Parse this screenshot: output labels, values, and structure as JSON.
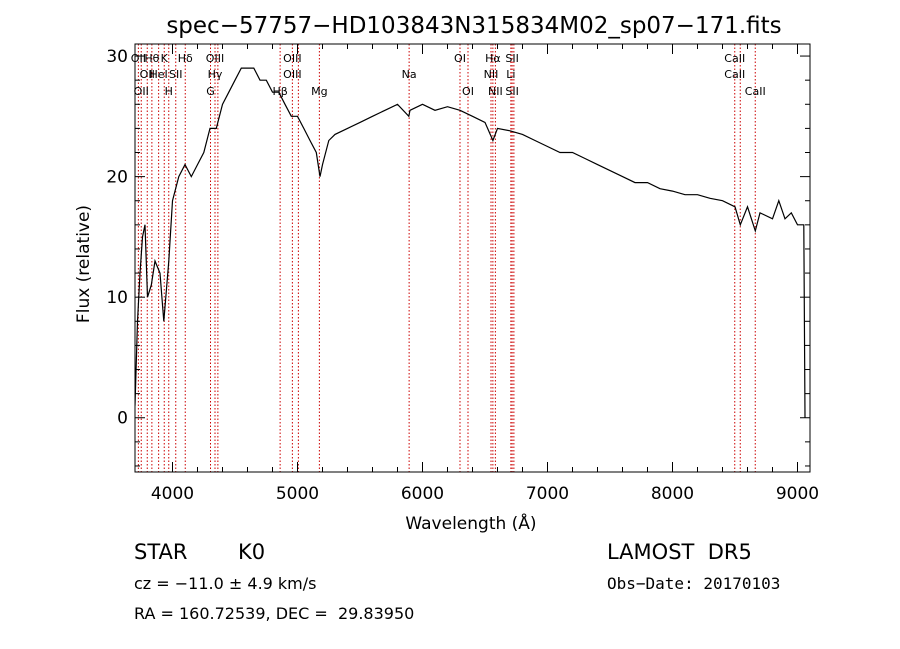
{
  "chart_data": {
    "type": "line",
    "title": "spec−57757−HD103843N315834M02_sp07−171.fits",
    "xlabel": "Wavelength (Å)",
    "ylabel": "Flux (relative)",
    "xlim": [
      3700,
      9100
    ],
    "ylim": [
      -4.5,
      31
    ],
    "grid": false,
    "xticks": [
      4000,
      5000,
      6000,
      7000,
      8000,
      9000
    ],
    "yticks": [
      0,
      10,
      20,
      30
    ],
    "series": [
      {
        "color": "#000000",
        "points": [
          [
            3700,
            1
          ],
          [
            3720,
            8
          ],
          [
            3740,
            12
          ],
          [
            3760,
            15
          ],
          [
            3780,
            16
          ],
          [
            3800,
            10
          ],
          [
            3830,
            11
          ],
          [
            3860,
            13
          ],
          [
            3900,
            12
          ],
          [
            3930,
            8
          ],
          [
            3970,
            13
          ],
          [
            4000,
            18
          ],
          [
            4050,
            20
          ],
          [
            4100,
            21
          ],
          [
            4150,
            20
          ],
          [
            4200,
            21
          ],
          [
            4250,
            22
          ],
          [
            4300,
            24
          ],
          [
            4350,
            24
          ],
          [
            4400,
            26
          ],
          [
            4450,
            27
          ],
          [
            4500,
            28
          ],
          [
            4550,
            29
          ],
          [
            4600,
            29
          ],
          [
            4650,
            29
          ],
          [
            4700,
            28
          ],
          [
            4750,
            28
          ],
          [
            4800,
            27
          ],
          [
            4850,
            27
          ],
          [
            4900,
            26
          ],
          [
            4950,
            25
          ],
          [
            5000,
            25
          ],
          [
            5050,
            24
          ],
          [
            5100,
            23
          ],
          [
            5150,
            22
          ],
          [
            5180,
            20
          ],
          [
            5200,
            21
          ],
          [
            5250,
            23
          ],
          [
            5300,
            23.5
          ],
          [
            5400,
            24
          ],
          [
            5500,
            24.5
          ],
          [
            5600,
            25
          ],
          [
            5700,
            25.5
          ],
          [
            5800,
            26
          ],
          [
            5890,
            25
          ],
          [
            5900,
            25.5
          ],
          [
            6000,
            26
          ],
          [
            6100,
            25.5
          ],
          [
            6200,
            25.8
          ],
          [
            6300,
            25.5
          ],
          [
            6400,
            25
          ],
          [
            6500,
            24.5
          ],
          [
            6563,
            23
          ],
          [
            6600,
            24
          ],
          [
            6700,
            23.8
          ],
          [
            6800,
            23.5
          ],
          [
            6900,
            23
          ],
          [
            7000,
            22.5
          ],
          [
            7100,
            22
          ],
          [
            7200,
            22
          ],
          [
            7300,
            21.5
          ],
          [
            7400,
            21
          ],
          [
            7500,
            20.5
          ],
          [
            7600,
            20
          ],
          [
            7700,
            19.5
          ],
          [
            7800,
            19.5
          ],
          [
            7900,
            19
          ],
          [
            8000,
            18.8
          ],
          [
            8100,
            18.5
          ],
          [
            8200,
            18.5
          ],
          [
            8300,
            18.2
          ],
          [
            8400,
            18
          ],
          [
            8500,
            17.5
          ],
          [
            8542,
            16
          ],
          [
            8600,
            17.5
          ],
          [
            8662,
            15.5
          ],
          [
            8700,
            17
          ],
          [
            8800,
            16.5
          ],
          [
            8850,
            18
          ],
          [
            8900,
            16.5
          ],
          [
            8950,
            17
          ],
          [
            9000,
            16
          ],
          [
            9050,
            16
          ],
          [
            9060,
            0
          ]
        ]
      }
    ],
    "lines": [
      {
        "x": 3727,
        "labels": [
          "OII"
        ]
      },
      {
        "x": 3750,
        "labels": [
          "",
          "",
          "OII"
        ]
      },
      {
        "x": 3798,
        "labels": [
          "",
          "OII"
        ]
      },
      {
        "x": 3835,
        "labels": [
          "Hθ"
        ]
      },
      {
        "x": 3889,
        "labels": [
          "",
          "HeI"
        ]
      },
      {
        "x": 3934,
        "labels": [
          "K"
        ]
      },
      {
        "x": 3970,
        "labels": [
          "",
          "",
          "H"
        ]
      },
      {
        "x": 4026,
        "labels": [
          "",
          "SII"
        ]
      },
      {
        "x": 4102,
        "labels": [
          "Hδ"
        ]
      },
      {
        "x": 4304,
        "labels": [
          "",
          "",
          "G"
        ]
      },
      {
        "x": 4340,
        "labels": [
          "OIII",
          "Hγ"
        ]
      },
      {
        "x": 4363,
        "labels": []
      },
      {
        "x": 4861,
        "labels": [
          "",
          "",
          "Hβ"
        ]
      },
      {
        "x": 4959,
        "labels": [
          "OIII",
          "OIII"
        ]
      },
      {
        "x": 5007,
        "labels": []
      },
      {
        "x": 5175,
        "labels": [
          "",
          "",
          "Mg"
        ]
      },
      {
        "x": 5893,
        "labels": [
          "",
          "Na"
        ]
      },
      {
        "x": 6300,
        "labels": [
          "OI"
        ]
      },
      {
        "x": 6364,
        "labels": [
          "",
          "",
          "OI"
        ]
      },
      {
        "x": 6548,
        "labels": [
          "",
          "NII"
        ]
      },
      {
        "x": 6563,
        "labels": [
          "Hα"
        ]
      },
      {
        "x": 6583,
        "labels": [
          "",
          "",
          "NII"
        ]
      },
      {
        "x": 6707,
        "labels": [
          "",
          "Li"
        ]
      },
      {
        "x": 6717,
        "labels": [
          "SII",
          "",
          "SII"
        ]
      },
      {
        "x": 6731,
        "labels": []
      },
      {
        "x": 8498,
        "labels": [
          "CaII",
          "CaII"
        ]
      },
      {
        "x": 8542,
        "labels": []
      },
      {
        "x": 8662,
        "labels": [
          "",
          "",
          "CaII"
        ]
      }
    ]
  },
  "info": {
    "object_class": "STAR",
    "subclass": "K0",
    "survey": "LAMOST  DR5",
    "redshift": "cz = −11.0 ± 4.9 km/s",
    "obs_date": "Obs−Date: 20170103",
    "coords": "RA = 160.72539, DEC =  29.83950"
  }
}
